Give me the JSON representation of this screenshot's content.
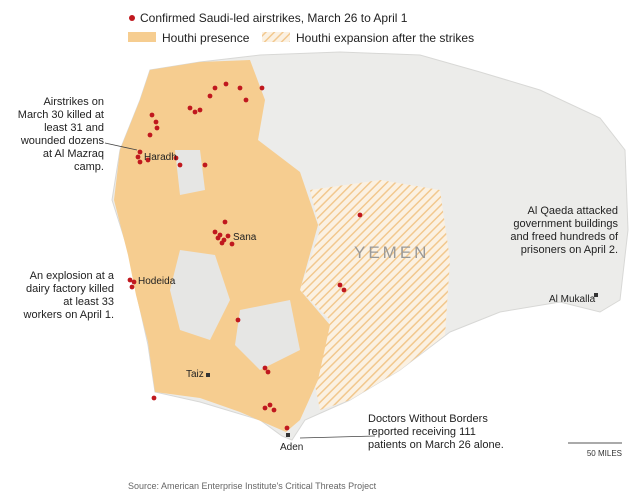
{
  "legend": {
    "airstrikes": "Confirmed Saudi-led airstrikes, March 26 to April 1",
    "presence": "Houthi presence",
    "expansion": "Houthi expansion after the strikes"
  },
  "country_label": "YEMEN",
  "cities": [
    "Haradh",
    "Sana",
    "Hodeida",
    "Taiz",
    "Aden",
    "Al Mukalla"
  ],
  "annotations": [
    "Airstrikes on March 30 killed at least 31 and wounded dozens at Al Mazraq camp.",
    "An explosion at a dairy factory killed at least 33 workers on April 1.",
    "Al Qaeda attacked government buildings and freed hundreds of prisoners on April 2.",
    "Doctors Without Borders reported receiving 111 patients on March 26 alone."
  ],
  "scale": "50 MILES",
  "source": "Source: American Enterprise Institute's Critical Threats Project"
}
